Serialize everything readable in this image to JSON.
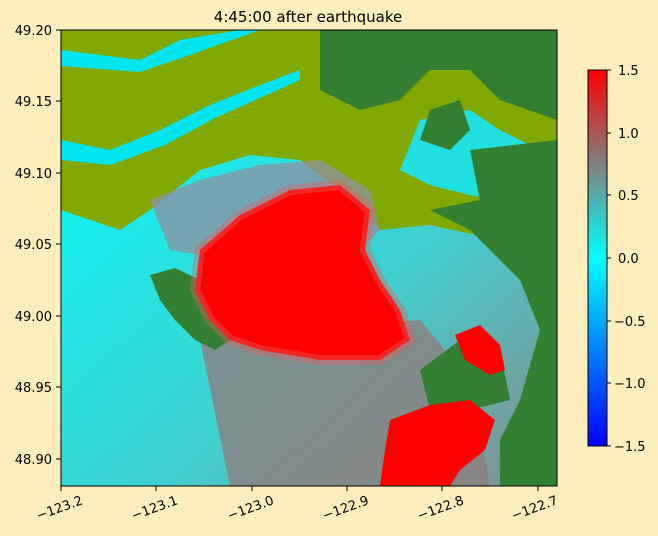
{
  "chart_data": {
    "type": "heatmap",
    "title": "4:45:00 after earthquake",
    "xlabel": "",
    "ylabel": "",
    "xlim": [
      -123.2,
      -122.69
    ],
    "ylim": [
      48.88,
      49.2
    ],
    "x_ticks": [
      -123.2,
      -123.1,
      -123.0,
      -122.9,
      -122.8,
      -122.7
    ],
    "x_tick_labels": [
      "−123.2",
      "−123.1",
      "−123.0",
      "−122.9",
      "−122.8",
      "−122.7"
    ],
    "y_ticks": [
      48.9,
      48.95,
      49.0,
      49.05,
      49.1,
      49.15,
      49.2
    ],
    "y_tick_labels": [
      "48.90",
      "48.95",
      "49.00",
      "49.05",
      "49.10",
      "49.15",
      "49.20"
    ],
    "colorbar": {
      "range": [
        -1.5,
        1.5
      ],
      "ticks": [
        -1.5,
        -1.0,
        -0.5,
        0.0,
        0.5,
        1.0,
        1.5
      ],
      "tick_labels": [
        "−1.5",
        "−1.0",
        "−0.5",
        "0.0",
        "0.5",
        "1.0",
        "1.5"
      ],
      "colors": [
        "#0000ff",
        "#00ffff",
        "#808080",
        "#ff0000"
      ]
    },
    "land_colors": [
      "#2e7d32",
      "#7fa800"
    ],
    "description_grid": "surface elevation (m) field over Boundary Bay region; red high (~1.5) inland from bay, cyan ~0 offshore"
  }
}
